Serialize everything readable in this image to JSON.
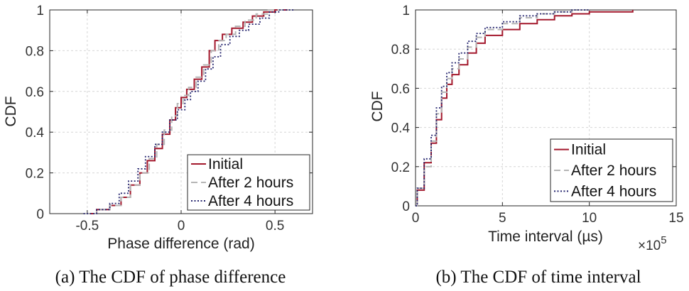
{
  "chart_data": [
    {
      "type": "line",
      "caption": "(a) The CDF of phase difference",
      "xlabel": "Phase difference (rad)",
      "ylabel": "CDF",
      "xlim": [
        -0.7,
        0.7
      ],
      "ylim": [
        0,
        1
      ],
      "xticks": [
        "-0.5",
        "0",
        "0.5"
      ],
      "yticks": [
        "0",
        "0.2",
        "0.4",
        "0.6",
        "0.8",
        "1"
      ],
      "grid": true,
      "legend_position": "bottom-right",
      "series": [
        {
          "name": "Initial",
          "color": "#a3182c",
          "dash": "solid",
          "x": [
            -0.52,
            -0.45,
            -0.38,
            -0.32,
            -0.27,
            -0.22,
            -0.18,
            -0.14,
            -0.1,
            -0.06,
            -0.03,
            0.0,
            0.03,
            0.07,
            0.11,
            0.15,
            0.18,
            0.22,
            0.27,
            0.33,
            0.38,
            0.44,
            0.5,
            0.6
          ],
          "values": [
            0.0,
            0.02,
            0.04,
            0.08,
            0.14,
            0.2,
            0.26,
            0.32,
            0.39,
            0.46,
            0.52,
            0.57,
            0.61,
            0.66,
            0.72,
            0.8,
            0.85,
            0.88,
            0.91,
            0.94,
            0.97,
            0.99,
            1.0,
            1.0
          ]
        },
        {
          "name": "After 2 hours",
          "color": "#b5b5b5",
          "dash": "dashed",
          "x": [
            -0.52,
            -0.45,
            -0.38,
            -0.32,
            -0.27,
            -0.22,
            -0.17,
            -0.13,
            -0.09,
            -0.05,
            -0.02,
            0.01,
            0.04,
            0.08,
            0.12,
            0.16,
            0.2,
            0.24,
            0.29,
            0.34,
            0.4,
            0.46,
            0.5,
            0.6
          ],
          "values": [
            0.0,
            0.02,
            0.04,
            0.08,
            0.14,
            0.2,
            0.27,
            0.34,
            0.41,
            0.48,
            0.54,
            0.58,
            0.62,
            0.67,
            0.73,
            0.8,
            0.85,
            0.88,
            0.92,
            0.95,
            0.98,
            1.0,
            1.0,
            1.0
          ]
        },
        {
          "name": "After 4 hours",
          "color": "#24246e",
          "dash": "dotted",
          "x": [
            -0.52,
            -0.45,
            -0.38,
            -0.33,
            -0.28,
            -0.23,
            -0.19,
            -0.14,
            -0.1,
            -0.06,
            -0.02,
            0.02,
            0.05,
            0.09,
            0.13,
            0.17,
            0.21,
            0.26,
            0.31,
            0.36,
            0.42,
            0.47,
            0.52,
            0.6
          ],
          "values": [
            0.0,
            0.02,
            0.05,
            0.1,
            0.16,
            0.22,
            0.28,
            0.34,
            0.4,
            0.46,
            0.51,
            0.56,
            0.6,
            0.65,
            0.71,
            0.77,
            0.83,
            0.87,
            0.9,
            0.93,
            0.96,
            0.99,
            1.0,
            1.0
          ]
        }
      ]
    },
    {
      "type": "line",
      "caption": "(b) The CDF of time interval",
      "xlabel": "Time interval (µs)",
      "ylabel": "CDF",
      "x_multiplier_label": "×10",
      "x_multiplier_exp": "5",
      "xlim": [
        0,
        15
      ],
      "ylim": [
        0,
        1
      ],
      "xticks": [
        "0",
        "5",
        "10",
        "15"
      ],
      "yticks": [
        "0",
        "0.2",
        "0.4",
        "0.6",
        "0.8",
        "1"
      ],
      "grid": true,
      "legend_position": "bottom-right",
      "series": [
        {
          "name": "Initial",
          "color": "#a3182c",
          "dash": "solid",
          "x": [
            0,
            0.1,
            0.5,
            0.9,
            1.2,
            1.5,
            1.8,
            2.1,
            2.5,
            3.0,
            3.5,
            4.0,
            5.0,
            6.0,
            7.0,
            8.0,
            9.0,
            10.0,
            11.0,
            12.5
          ],
          "values": [
            0.0,
            0.08,
            0.22,
            0.32,
            0.44,
            0.55,
            0.62,
            0.67,
            0.72,
            0.78,
            0.83,
            0.87,
            0.9,
            0.93,
            0.95,
            0.97,
            0.98,
            0.99,
            0.99,
            1.0
          ]
        },
        {
          "name": "After 2 hours",
          "color": "#b5b5b5",
          "dash": "dashed",
          "x": [
            0,
            0.1,
            0.5,
            0.9,
            1.2,
            1.5,
            1.8,
            2.1,
            2.5,
            3.0,
            3.5,
            4.0,
            5.0,
            6.0,
            7.0,
            8.0,
            9.0,
            10.0
          ],
          "values": [
            0.0,
            0.09,
            0.2,
            0.33,
            0.47,
            0.58,
            0.65,
            0.7,
            0.75,
            0.81,
            0.86,
            0.9,
            0.93,
            0.96,
            0.98,
            0.99,
            1.0,
            1.0
          ]
        },
        {
          "name": "After 4 hours",
          "color": "#24246e",
          "dash": "dotted",
          "x": [
            0,
            0.1,
            0.5,
            0.9,
            1.2,
            1.5,
            1.8,
            2.1,
            2.5,
            3.0,
            3.5,
            4.0,
            5.0,
            6.0,
            7.0,
            8.0,
            9.0,
            10.0
          ],
          "values": [
            0.0,
            0.09,
            0.24,
            0.36,
            0.5,
            0.61,
            0.68,
            0.73,
            0.78,
            0.84,
            0.88,
            0.91,
            0.94,
            0.97,
            0.98,
            0.99,
            1.0,
            1.0
          ]
        }
      ]
    }
  ]
}
